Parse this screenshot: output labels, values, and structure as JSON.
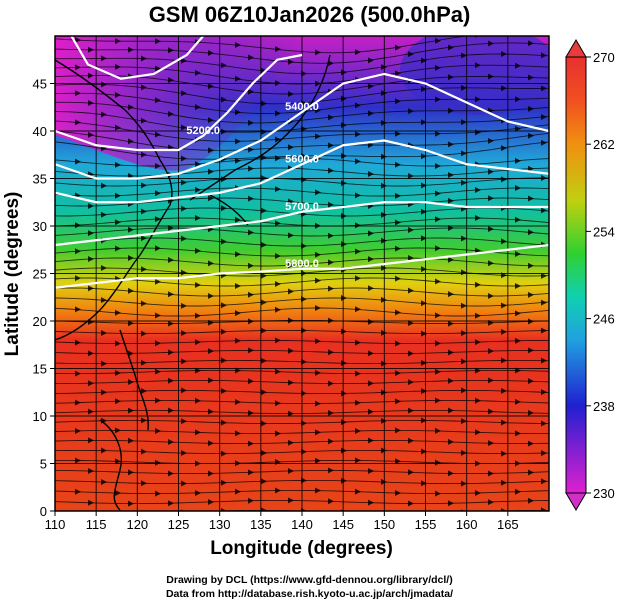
{
  "title": "GSM 06Z10Jan2026 (500.0hPa)",
  "credits": {
    "line1": "Drawing by DCL (https://www.gfd-dennou.org/library/dcl/)",
    "line2": "Data from http://database.rish.kyoto-u.ac.jp/arch/jmadata/"
  },
  "chart_data": {
    "type": "heatmap",
    "xlabel": "Longitude (degrees)",
    "ylabel": "Latitude  (degrees)",
    "xlim": [
      110,
      170
    ],
    "ylim": [
      0,
      50
    ],
    "x_ticks": [
      "110",
      "115",
      "120",
      "125",
      "130",
      "135",
      "140",
      "145",
      "150",
      "155",
      "160",
      "165"
    ],
    "y_ticks": [
      "0",
      "5",
      "10",
      "15",
      "20",
      "25",
      "30",
      "35",
      "40",
      "45"
    ],
    "colorbar": {
      "min": 230,
      "max": 270,
      "ticks": [
        "230",
        "238",
        "246",
        "254",
        "262",
        "270"
      ]
    },
    "contours": [
      {
        "label": "5200.0",
        "points": [
          [
            110,
            40
          ],
          [
            115,
            38.5
          ],
          [
            120,
            38
          ],
          [
            125,
            38
          ],
          [
            128,
            39.5
          ],
          [
            131,
            42
          ],
          [
            134,
            45
          ],
          [
            137,
            47.5
          ],
          [
            140,
            48
          ]
        ]
      },
      {
        "label": "5400.0",
        "points": [
          [
            110,
            36.5
          ],
          [
            115,
            35
          ],
          [
            120,
            35
          ],
          [
            125,
            35.5
          ],
          [
            130,
            37
          ],
          [
            135,
            39
          ],
          [
            140,
            42
          ],
          [
            145,
            45
          ],
          [
            150,
            46
          ],
          [
            155,
            45
          ],
          [
            160,
            43
          ],
          [
            165,
            41
          ],
          [
            170,
            40
          ]
        ]
      },
      {
        "label": "5600.0",
        "points": [
          [
            110,
            33.5
          ],
          [
            115,
            32.5
          ],
          [
            120,
            32.5
          ],
          [
            125,
            33
          ],
          [
            130,
            33.5
          ],
          [
            135,
            34.5
          ],
          [
            140,
            36.5
          ],
          [
            145,
            38.5
          ],
          [
            150,
            39
          ],
          [
            155,
            38
          ],
          [
            160,
            36.5
          ],
          [
            165,
            36
          ],
          [
            170,
            35.5
          ]
        ]
      },
      {
        "label": "5700.0",
        "points": [
          [
            110,
            28
          ],
          [
            115,
            28.5
          ],
          [
            120,
            29
          ],
          [
            125,
            29.5
          ],
          [
            130,
            30
          ],
          [
            135,
            30.5
          ],
          [
            140,
            31.5
          ],
          [
            145,
            32
          ],
          [
            150,
            32.5
          ],
          [
            155,
            32.5
          ],
          [
            160,
            32
          ],
          [
            165,
            32
          ],
          [
            170,
            32
          ]
        ]
      },
      {
        "label": "5800.0",
        "points": [
          [
            110,
            23.5
          ],
          [
            115,
            24
          ],
          [
            120,
            24.5
          ],
          [
            125,
            24.5
          ],
          [
            130,
            25
          ],
          [
            135,
            25.2
          ],
          [
            140,
            25.5
          ],
          [
            145,
            25.5
          ],
          [
            150,
            26
          ],
          [
            155,
            26.5
          ],
          [
            160,
            27
          ],
          [
            165,
            27.5
          ],
          [
            170,
            28
          ]
        ]
      },
      {
        "label": "",
        "points": [
          [
            112,
            50
          ],
          [
            114,
            47
          ],
          [
            118,
            45.5
          ],
          [
            122,
            46
          ],
          [
            126,
            48
          ],
          [
            128,
            50
          ]
        ]
      }
    ]
  }
}
